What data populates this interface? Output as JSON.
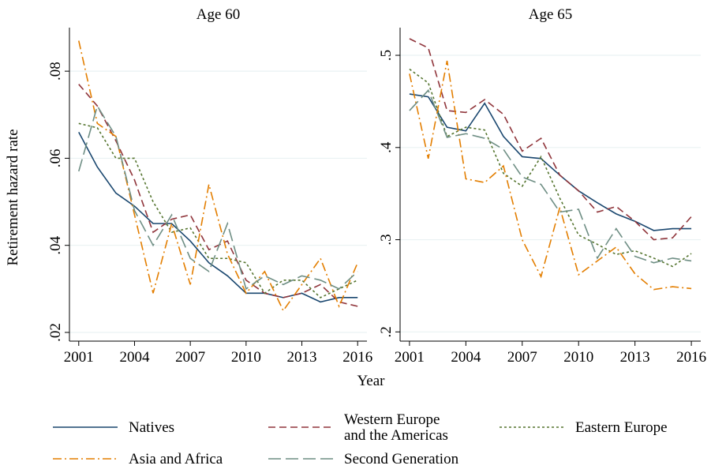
{
  "chart_data": [
    {
      "type": "line",
      "title": "Age 60",
      "ylabel": "Retirement hazard rate",
      "xlabel": "Year",
      "x": [
        2001,
        2002,
        2003,
        2004,
        2005,
        2006,
        2007,
        2008,
        2009,
        2010,
        2011,
        2012,
        2013,
        2014,
        2015,
        2016
      ],
      "xlim": [
        2000.5,
        2016.5
      ],
      "xticks": [
        2001,
        2004,
        2007,
        2010,
        2013,
        2016
      ],
      "ylim": [
        0.018,
        0.09
      ],
      "yticks": [
        {
          "value": 0.02,
          "label": ".02"
        },
        {
          "value": 0.04,
          "label": ".04"
        },
        {
          "value": 0.06,
          "label": ".06"
        },
        {
          "value": 0.08,
          "label": ".08"
        }
      ],
      "grid": true,
      "series": [
        {
          "name": "Natives",
          "color": "#1a476f",
          "values": [
            0.066,
            0.058,
            0.052,
            0.049,
            0.045,
            0.045,
            0.041,
            0.036,
            0.033,
            0.029,
            0.029,
            0.028,
            0.029,
            0.027,
            0.028,
            0.028
          ]
        },
        {
          "name": "Western Europe\nand the Americas",
          "color": "#90353b",
          "values": [
            0.077,
            0.072,
            0.064,
            0.055,
            0.043,
            0.046,
            0.047,
            0.039,
            0.041,
            0.032,
            0.029,
            0.028,
            0.029,
            0.031,
            0.027,
            0.026
          ]
        },
        {
          "name": "Eastern Europe",
          "color": "#55752f",
          "values": [
            0.068,
            0.067,
            0.06,
            0.06,
            0.05,
            0.043,
            0.044,
            0.037,
            0.037,
            0.036,
            0.029,
            0.032,
            0.032,
            0.028,
            0.03,
            0.032
          ]
        },
        {
          "name": "Asia and Africa",
          "color": "#e37e00",
          "values": [
            0.087,
            0.068,
            0.065,
            0.047,
            0.029,
            0.045,
            0.031,
            0.054,
            0.038,
            0.029,
            0.034,
            0.025,
            0.031,
            0.037,
            0.026,
            0.036
          ]
        },
        {
          "name": "Second Generation",
          "color": "#6e8e84",
          "values": [
            0.057,
            0.072,
            0.065,
            0.048,
            0.04,
            0.047,
            0.037,
            0.034,
            0.045,
            0.03,
            0.033,
            0.031,
            0.033,
            0.032,
            0.03,
            0.034
          ]
        }
      ]
    },
    {
      "type": "line",
      "title": "Age 65",
      "x": [
        2001,
        2002,
        2003,
        2004,
        2005,
        2006,
        2007,
        2008,
        2009,
        2010,
        2011,
        2012,
        2013,
        2014,
        2015,
        2016
      ],
      "xlim": [
        2000.5,
        2016.5
      ],
      "xticks": [
        2001,
        2004,
        2007,
        2010,
        2013,
        2016
      ],
      "ylim": [
        0.19,
        0.53
      ],
      "yticks": [
        {
          "value": 0.2,
          "label": ".2"
        },
        {
          "value": 0.3,
          "label": ".3"
        },
        {
          "value": 0.4,
          "label": ".4"
        },
        {
          "value": 0.5,
          "label": ".5"
        }
      ],
      "grid": true,
      "series": [
        {
          "name": "Natives",
          "color": "#1a476f",
          "values": [
            0.458,
            0.455,
            0.422,
            0.418,
            0.448,
            0.412,
            0.39,
            0.388,
            0.37,
            0.353,
            0.34,
            0.328,
            0.32,
            0.31,
            0.312,
            0.312
          ]
        },
        {
          "name": "Western Europe\nand the Americas",
          "color": "#90353b",
          "values": [
            0.518,
            0.508,
            0.44,
            0.438,
            0.452,
            0.436,
            0.396,
            0.41,
            0.37,
            0.353,
            0.33,
            0.336,
            0.32,
            0.3,
            0.302,
            0.325
          ]
        },
        {
          "name": "Eastern Europe",
          "color": "#55752f",
          "values": [
            0.485,
            0.47,
            0.412,
            0.422,
            0.419,
            0.372,
            0.358,
            0.39,
            0.345,
            0.305,
            0.295,
            0.284,
            0.288,
            0.28,
            0.271,
            0.285
          ]
        },
        {
          "name": "Asia and Africa",
          "color": "#e37e00",
          "values": [
            0.48,
            0.388,
            0.494,
            0.366,
            0.362,
            0.38,
            0.3,
            0.26,
            0.335,
            0.262,
            0.277,
            0.292,
            0.263,
            0.246,
            0.249,
            0.247
          ]
        },
        {
          "name": "Second Generation",
          "color": "#6e8e84",
          "values": [
            0.44,
            0.462,
            0.411,
            0.415,
            0.41,
            0.398,
            0.368,
            0.36,
            0.33,
            0.333,
            0.28,
            0.312,
            0.282,
            0.275,
            0.28,
            0.277
          ]
        }
      ]
    }
  ]
}
